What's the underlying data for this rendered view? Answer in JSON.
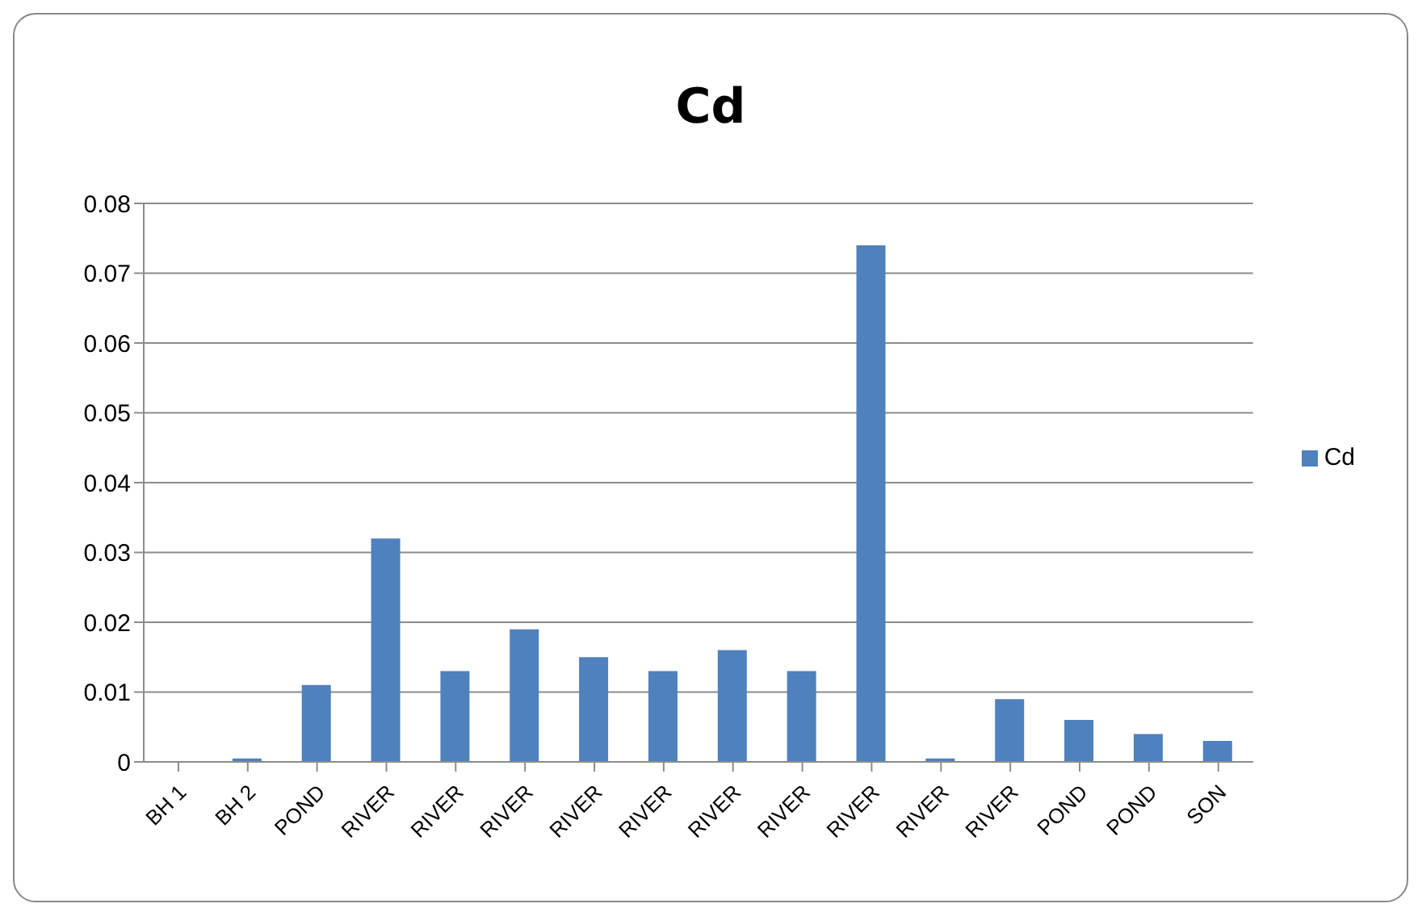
{
  "chart_data": {
    "type": "bar",
    "title": "Cd",
    "categories": [
      "BH 1",
      "BH 2",
      "POND",
      "RIVER",
      "RIVER",
      "RIVER",
      "RIVER",
      "RIVER",
      "RIVER",
      "RIVER",
      "RIVER",
      "RIVER",
      "RIVER",
      "POND",
      "POND",
      "SON"
    ],
    "series": [
      {
        "name": "Cd",
        "color": "#4f81bd",
        "values": [
          0,
          0.0005,
          0.011,
          0.032,
          0.013,
          0.019,
          0.015,
          0.013,
          0.016,
          0.013,
          0.074,
          0.0005,
          0.009,
          0.006,
          0.004,
          0.003
        ]
      }
    ],
    "ylim": [
      0,
      0.08
    ],
    "yticks": [
      0,
      0.01,
      0.02,
      0.03,
      0.04,
      0.05,
      0.06,
      0.07,
      0.08
    ],
    "grid": "y",
    "legend": "right"
  }
}
